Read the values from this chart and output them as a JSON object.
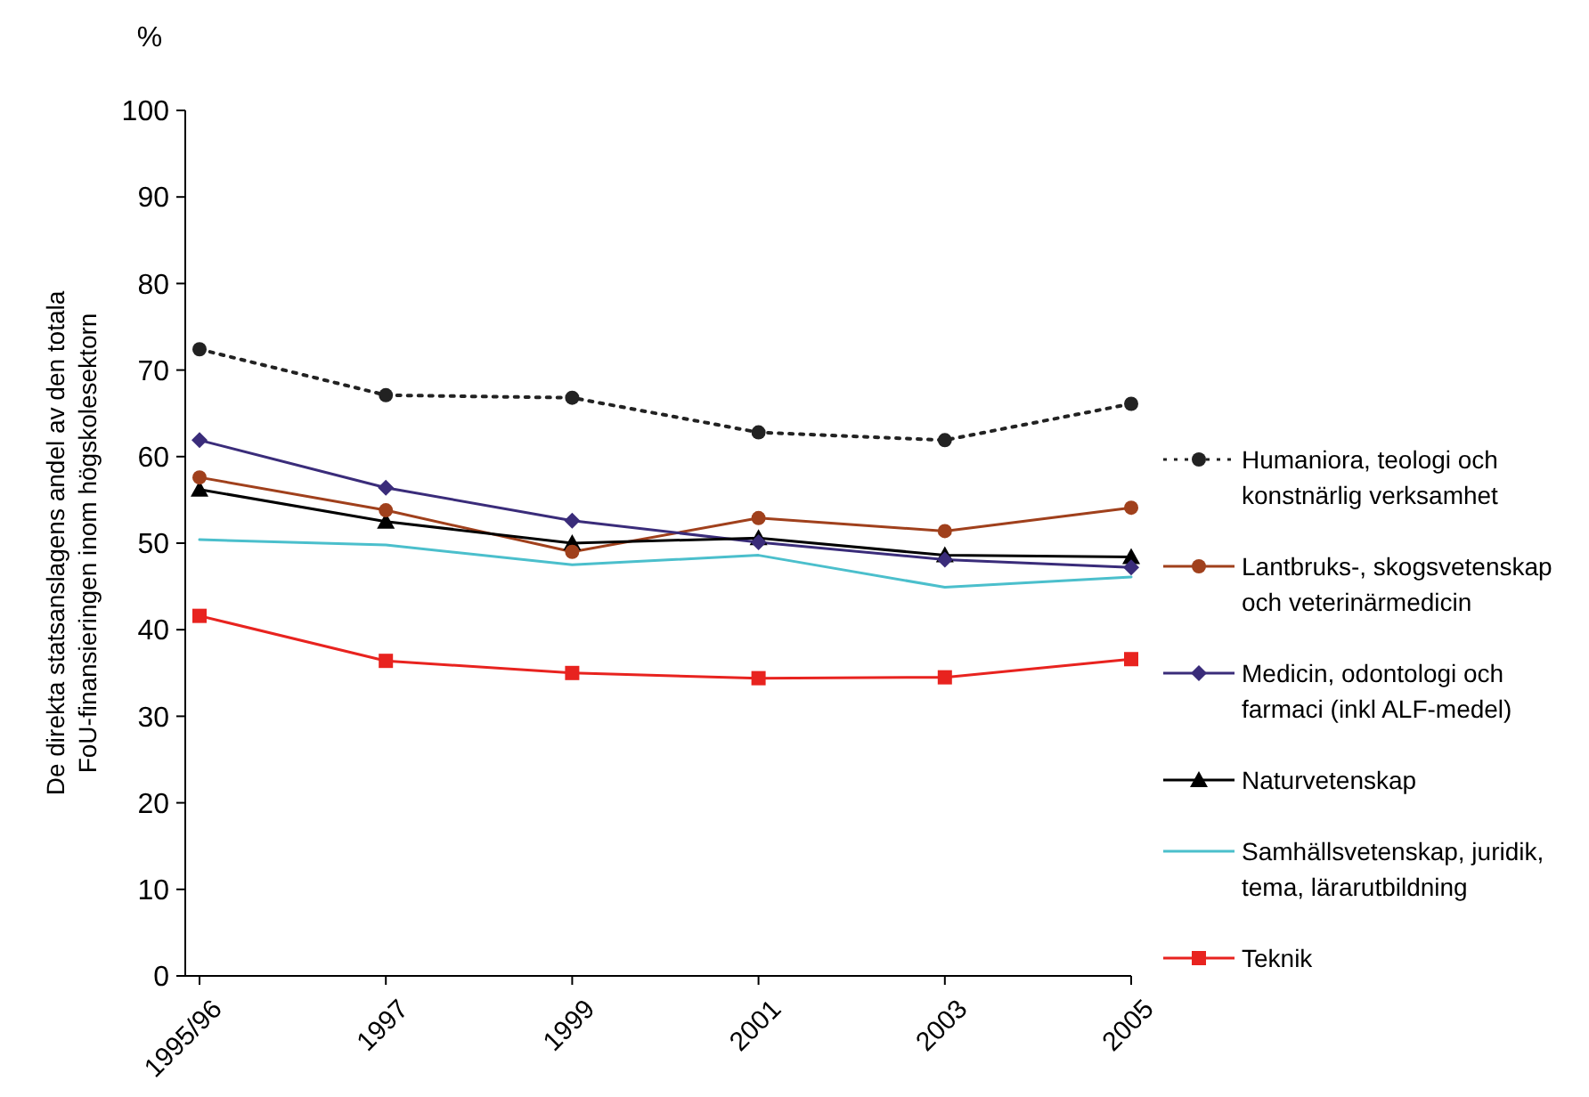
{
  "chart_data": {
    "type": "line",
    "ylabel": "De direkta statsanslagens andel av den totala FoU-finansieringen inom högskolesektorn",
    "annotations": [
      "%"
    ],
    "categories": [
      "1995/96",
      "1997",
      "1999",
      "2001",
      "2003",
      "2005"
    ],
    "ylim": [
      0,
      100
    ],
    "yticks": [
      0,
      10,
      20,
      30,
      40,
      50,
      60,
      70,
      80,
      90,
      100
    ],
    "grid": false,
    "legend": "right",
    "series": [
      {
        "name": "Humaniora, teologi och konstnärlig verksamhet",
        "color": "#222222",
        "marker": "circle",
        "line_style": "dotted",
        "values": [
          72.4,
          67.1,
          66.8,
          62.8,
          61.9,
          66.1
        ]
      },
      {
        "name": "Lantbruks-, skogsvetenskap och veterinärmedicin",
        "color": "#a0401c",
        "marker": "circle",
        "line_style": "solid",
        "values": [
          57.6,
          53.8,
          49,
          52.9,
          51.4,
          54.1
        ]
      },
      {
        "name": "Medicin, odontologi och farmaci (inkl ALF-medel)",
        "color": "#3a2c7a",
        "marker": "diamond",
        "line_style": "solid",
        "values": [
          61.9,
          56.4,
          52.6,
          50.1,
          48.1,
          47.2
        ]
      },
      {
        "name": "Naturvetenskap",
        "color": "#000000",
        "marker": "triangle",
        "line_style": "solid",
        "values": [
          56.2,
          52.5,
          50,
          50.6,
          48.6,
          48.4
        ]
      },
      {
        "name": "Samhällsvetenskap, juridik, tema, lärarutbildning",
        "color": "#4bbfcc",
        "marker": "none",
        "line_style": "solid",
        "values": [
          50.4,
          49.8,
          47.5,
          48.6,
          44.9,
          46.1
        ]
      },
      {
        "name": "Teknik",
        "color": "#e8231f",
        "marker": "square",
        "line_style": "solid",
        "values": [
          41.6,
          36.4,
          35,
          34.4,
          34.5,
          36.6
        ]
      }
    ]
  }
}
